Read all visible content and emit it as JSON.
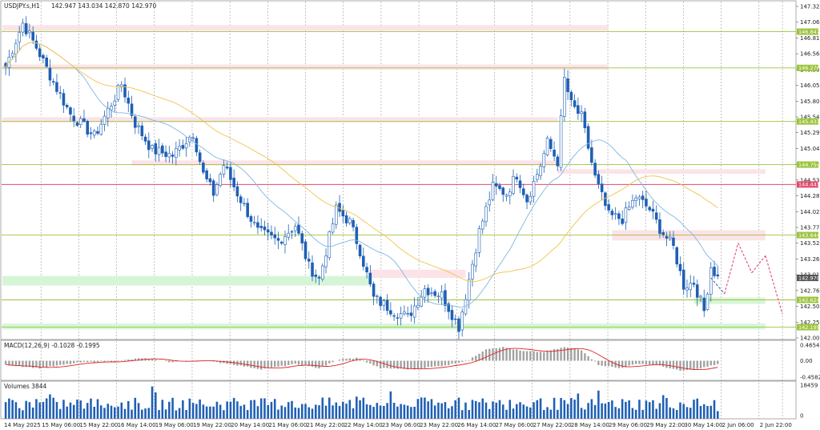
{
  "header": {
    "symbol": "USDJPY.s,H1",
    "ohlc": "142.947 143.034 142.870 142.970"
  },
  "colors": {
    "bull": "#1e5fb4",
    "bear": "#1e5fb4",
    "ma_fast": "#7fb8e0",
    "ma_slow": "#f2c24f",
    "resistance_line": "#9bc43c",
    "pivot_line": "#e04a6e",
    "supply_zone": "#fbe3e8",
    "demand_zone": "#d6f5d6",
    "macd_hist": "#a0a0a0",
    "macd_signal": "#e02020",
    "volume": "#1e5fb4",
    "projection": "#e04a6e"
  },
  "chart_data": [
    {
      "type": "candlestick",
      "panel": "price",
      "y_axis_ticks": [
        "147.320",
        "147.065",
        "146.810",
        "146.560",
        "146.305",
        "146.050",
        "145.800",
        "145.545",
        "145.290",
        "145.040",
        "144.785",
        "144.530",
        "144.280",
        "144.025",
        "143.770",
        "143.520",
        "143.265",
        "143.010",
        "142.760",
        "142.505",
        "142.250",
        "142.000"
      ],
      "ylim": [
        142.0,
        147.32
      ],
      "x_labels": [
        "14 May 2025",
        "15 May 06:00",
        "15 May 22:00",
        "16 May 14:00",
        "19 May 06:00",
        "19 May 22:00",
        "20 May 14:00",
        "21 May 06:00",
        "21 May 22:00",
        "22 May 14:00",
        "23 May 06:00",
        "23 May 22:00",
        "26 May 14:00",
        "27 May 06:00",
        "27 May 22:00",
        "28 May 14:00",
        "29 May 06:00",
        "29 May 22:00",
        "30 May 14:00",
        "2 Jun 06:00",
        "2 Jun 22:00"
      ],
      "last_price": 142.97,
      "last_price_label": "142.970",
      "horizontal_levels": [
        {
          "value": 146.847,
          "label": "146.847",
          "kind": "resistance"
        },
        {
          "value": 146.276,
          "label": "146.276",
          "kind": "resistance"
        },
        {
          "value": 145.433,
          "label": "145.433",
          "kind": "resistance"
        },
        {
          "value": 144.754,
          "label": "144.754",
          "kind": "resistance"
        },
        {
          "value": 144.441,
          "label": "144.441",
          "kind": "pivot"
        },
        {
          "value": 143.644,
          "label": "143.644",
          "kind": "resistance"
        },
        {
          "value": 142.624,
          "label": "142.624",
          "kind": "support"
        },
        {
          "value": 142.195,
          "label": "142.195",
          "kind": "support"
        }
      ],
      "zones": [
        {
          "kind": "supply",
          "from": 146.95,
          "to": 146.86,
          "start_bar": 0,
          "end_bar": 177
        },
        {
          "kind": "supply",
          "from": 146.33,
          "to": 146.25,
          "start_bar": 0,
          "end_bar": 177
        },
        {
          "kind": "supply",
          "from": 145.5,
          "to": 145.42,
          "start_bar": 0,
          "end_bar": 162
        },
        {
          "kind": "supply",
          "from": 144.82,
          "to": 144.74,
          "start_bar": 37,
          "end_bar": 162
        },
        {
          "kind": "supply",
          "from": 144.68,
          "to": 144.61,
          "start_bar": 162,
          "end_bar": 223
        },
        {
          "kind": "supply",
          "from": 143.72,
          "to": 143.56,
          "start_bar": 178,
          "end_bar": 223
        },
        {
          "kind": "supply",
          "from": 143.1,
          "to": 142.97,
          "start_bar": 107,
          "end_bar": 135
        },
        {
          "kind": "demand",
          "from": 143.0,
          "to": 142.85,
          "start_bar": 0,
          "end_bar": 107
        },
        {
          "kind": "demand",
          "from": 142.66,
          "to": 142.56,
          "start_bar": 202,
          "end_bar": 223
        },
        {
          "kind": "demand",
          "from": 142.25,
          "to": 142.16,
          "start_bar": 0,
          "end_bar": 223
        }
      ],
      "projection": [
        {
          "bar": 207,
          "value": 142.97
        },
        {
          "bar": 211,
          "value": 142.72
        },
        {
          "bar": 215,
          "value": 143.52
        },
        {
          "bar": 219,
          "value": 143.05
        },
        {
          "bar": 223,
          "value": 143.32
        },
        {
          "bar": 228,
          "value": 142.4
        }
      ],
      "moving_averages": [
        {
          "period": 20,
          "role": "fast"
        },
        {
          "period": 50,
          "role": "slow"
        }
      ],
      "anchors": [
        {
          "bar": 0,
          "value": 146.3
        },
        {
          "bar": 5,
          "value": 146.98
        },
        {
          "bar": 9,
          "value": 146.6
        },
        {
          "bar": 14,
          "value": 146.05
        },
        {
          "bar": 19,
          "value": 145.55
        },
        {
          "bar": 26,
          "value": 145.2
        },
        {
          "bar": 34,
          "value": 146.02
        },
        {
          "bar": 38,
          "value": 145.4
        },
        {
          "bar": 43,
          "value": 144.98
        },
        {
          "bar": 49,
          "value": 144.9
        },
        {
          "bar": 55,
          "value": 145.25
        },
        {
          "bar": 58,
          "value": 144.6
        },
        {
          "bar": 61,
          "value": 144.3
        },
        {
          "bar": 64,
          "value": 144.75
        },
        {
          "bar": 68,
          "value": 144.3
        },
        {
          "bar": 74,
          "value": 143.7
        },
        {
          "bar": 80,
          "value": 143.55
        },
        {
          "bar": 85,
          "value": 143.8
        },
        {
          "bar": 89,
          "value": 143.15
        },
        {
          "bar": 92,
          "value": 142.95
        },
        {
          "bar": 97,
          "value": 144.05
        },
        {
          "bar": 101,
          "value": 143.85
        },
        {
          "bar": 104,
          "value": 143.4
        },
        {
          "bar": 108,
          "value": 142.65
        },
        {
          "bar": 114,
          "value": 142.45
        },
        {
          "bar": 118,
          "value": 142.35
        },
        {
          "bar": 123,
          "value": 142.8
        },
        {
          "bar": 128,
          "value": 142.7
        },
        {
          "bar": 133,
          "value": 142.2
        },
        {
          "bar": 136,
          "value": 142.95
        },
        {
          "bar": 139,
          "value": 143.7
        },
        {
          "bar": 143,
          "value": 144.4
        },
        {
          "bar": 147,
          "value": 144.3
        },
        {
          "bar": 150,
          "value": 144.6
        },
        {
          "bar": 153,
          "value": 144.2
        },
        {
          "bar": 157,
          "value": 144.75
        },
        {
          "bar": 159,
          "value": 145.1
        },
        {
          "bar": 162,
          "value": 144.8
        },
        {
          "bar": 164,
          "value": 146.1
        },
        {
          "bar": 166,
          "value": 145.7
        },
        {
          "bar": 169,
          "value": 145.5
        },
        {
          "bar": 173,
          "value": 144.55
        },
        {
          "bar": 177,
          "value": 143.95
        },
        {
          "bar": 181,
          "value": 143.9
        },
        {
          "bar": 185,
          "value": 144.25
        },
        {
          "bar": 189,
          "value": 144.05
        },
        {
          "bar": 192,
          "value": 143.75
        },
        {
          "bar": 196,
          "value": 143.45
        },
        {
          "bar": 199,
          "value": 142.85
        },
        {
          "bar": 202,
          "value": 142.9
        },
        {
          "bar": 205,
          "value": 142.45
        },
        {
          "bar": 207,
          "value": 143.15
        },
        {
          "bar": 209,
          "value": 142.97
        }
      ]
    },
    {
      "type": "bar",
      "panel": "macd",
      "label": "MACD(12,26,9) -0.1028 -0.1995",
      "y_axis_ticks": [
        "0.4654",
        "0.00",
        "-0.4582"
      ],
      "ylim": [
        -0.58,
        0.58
      ],
      "anchors": [
        {
          "bar": 0,
          "value": -0.12
        },
        {
          "bar": 10,
          "value": -0.22
        },
        {
          "bar": 22,
          "value": -0.05
        },
        {
          "bar": 32,
          "value": -0.02
        },
        {
          "bar": 40,
          "value": 0.08
        },
        {
          "bar": 48,
          "value": -0.04
        },
        {
          "bar": 56,
          "value": 0.02
        },
        {
          "bar": 65,
          "value": -0.08
        },
        {
          "bar": 75,
          "value": -0.25
        },
        {
          "bar": 85,
          "value": -0.1
        },
        {
          "bar": 92,
          "value": -0.22
        },
        {
          "bar": 98,
          "value": 0.04
        },
        {
          "bar": 103,
          "value": 0.08
        },
        {
          "bar": 110,
          "value": -0.22
        },
        {
          "bar": 120,
          "value": -0.25
        },
        {
          "bar": 130,
          "value": -0.12
        },
        {
          "bar": 136,
          "value": 0.02
        },
        {
          "bar": 141,
          "value": 0.35
        },
        {
          "bar": 146,
          "value": 0.4
        },
        {
          "bar": 152,
          "value": 0.28
        },
        {
          "bar": 158,
          "value": 0.26
        },
        {
          "bar": 164,
          "value": 0.4
        },
        {
          "bar": 169,
          "value": 0.32
        },
        {
          "bar": 174,
          "value": -0.12
        },
        {
          "bar": 180,
          "value": -0.22
        },
        {
          "bar": 186,
          "value": -0.08
        },
        {
          "bar": 192,
          "value": -0.15
        },
        {
          "bar": 198,
          "value": -0.3
        },
        {
          "bar": 203,
          "value": -0.25
        },
        {
          "bar": 209,
          "value": -0.1
        }
      ]
    },
    {
      "type": "bar",
      "panel": "volume",
      "label": "Volumes 3844",
      "y_axis_ticks": [
        "18459",
        "0"
      ],
      "ylim": [
        0,
        18459
      ],
      "last_value": 3844
    }
  ]
}
